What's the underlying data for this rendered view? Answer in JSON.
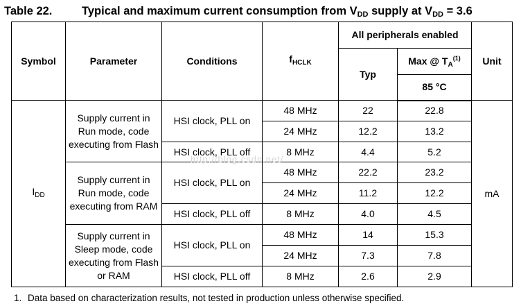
{
  "title": {
    "number": "Table 22.",
    "text_prefix": "Typical and maximum current consumption from V",
    "text_sub1": "DD",
    "text_middle": " supply at V",
    "text_sub2": "DD",
    "text_suffix": " = 3.6"
  },
  "headers": {
    "symbol": "Symbol",
    "parameter": "Parameter",
    "conditions": "Conditions",
    "fhclk_main": "f",
    "fhclk_sub": "HCLK",
    "all_peripherals": "All peripherals enabled",
    "typ": "Typ",
    "max_main": "Max @ T",
    "max_sub": "A",
    "max_sup": "(1)",
    "temp": "85 °C",
    "unit": "Unit"
  },
  "symbol": {
    "main": "I",
    "sub": "DD"
  },
  "unit": "mA",
  "groups": [
    {
      "parameter": "Supply current in Run mode, code executing from Flash",
      "pll_on_label": "HSI clock, PLL on",
      "pll_off_label": "HSI clock, PLL off",
      "rows": [
        {
          "fhclk": "48 MHz",
          "typ": "22",
          "max": "22.8"
        },
        {
          "fhclk": "24 MHz",
          "typ": "12.2",
          "max": "13.2"
        },
        {
          "fhclk": "8 MHz",
          "typ": "4.4",
          "max": "5.2"
        }
      ]
    },
    {
      "parameter": "Supply current in Run mode, code executing from RAM",
      "pll_on_label": "HSI clock, PLL on",
      "pll_off_label": "HSI clock, PLL off",
      "rows": [
        {
          "fhclk": "48 MHz",
          "typ": "22.2",
          "max": "23.2"
        },
        {
          "fhclk": "24 MHz",
          "typ": "11.2",
          "max": "12.2"
        },
        {
          "fhclk": "8 MHz",
          "typ": "4.0",
          "max": "4.5"
        }
      ]
    },
    {
      "parameter": "Supply current in Sleep mode, code executing from Flash or RAM",
      "pll_on_label": "HSI clock, PLL on",
      "pll_off_label": "HSI clock, PLL off",
      "rows": [
        {
          "fhclk": "48 MHz",
          "typ": "14",
          "max": "15.3"
        },
        {
          "fhclk": "24 MHz",
          "typ": "7.3",
          "max": "7.8"
        },
        {
          "fhclk": "8 MHz",
          "typ": "2.6",
          "max": "2.9"
        }
      ]
    }
  ],
  "watermark": "http://blog.csdn.net/",
  "footnote": {
    "number": "1.",
    "text": "Data based on characterization results, not tested in production unless otherwise specified."
  }
}
